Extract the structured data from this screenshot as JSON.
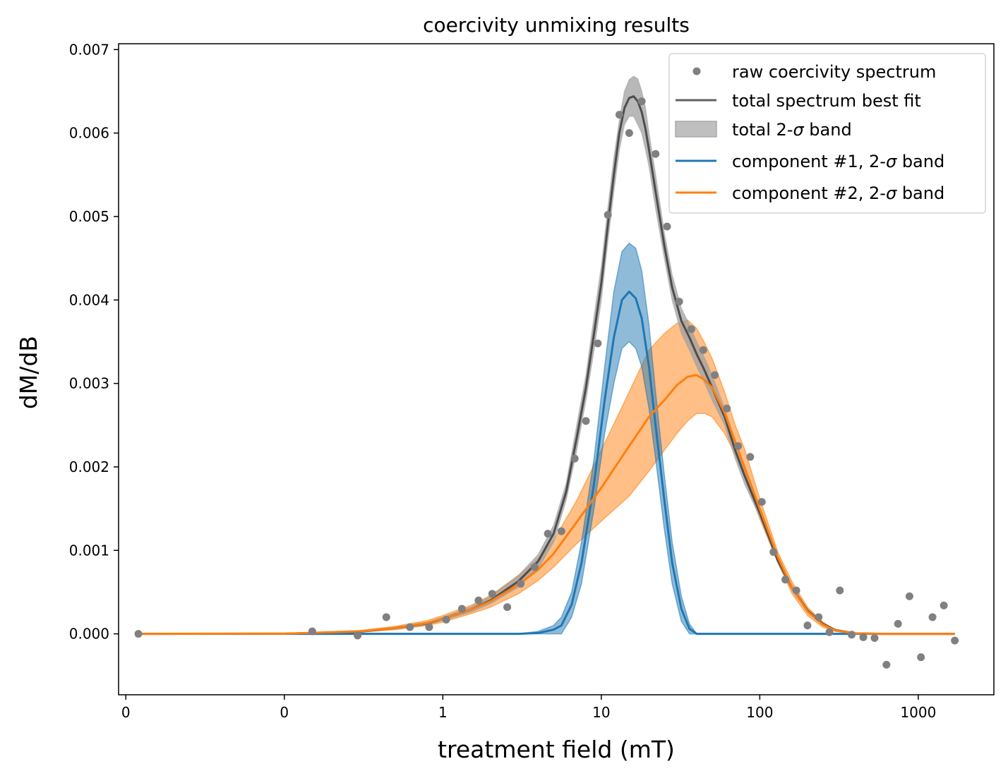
{
  "chart_data": {
    "type": "line",
    "title": "coercivity unmixing results",
    "xlabel": "treatment field (mT)",
    "ylabel": "dM/dB",
    "x_scale": "log",
    "xlim": [
      0.009,
      3000
    ],
    "ylim": [
      -0.00073,
      0.00707
    ],
    "x_ticks": [
      {
        "value": 0.01,
        "label": "0"
      },
      {
        "value": 0.1,
        "label": "0"
      },
      {
        "value": 1,
        "label": "1"
      },
      {
        "value": 10,
        "label": "10"
      },
      {
        "value": 100,
        "label": "100"
      },
      {
        "value": 1000,
        "label": "1000"
      }
    ],
    "y_ticks": [
      {
        "value": 0.0,
        "label": "0.000"
      },
      {
        "value": 0.001,
        "label": "0.001"
      },
      {
        "value": 0.002,
        "label": "0.002"
      },
      {
        "value": 0.003,
        "label": "0.003"
      },
      {
        "value": 0.004,
        "label": "0.004"
      },
      {
        "value": 0.005,
        "label": "0.005"
      },
      {
        "value": 0.006,
        "label": "0.006"
      },
      {
        "value": 0.007,
        "label": "0.007"
      }
    ],
    "grid": false,
    "legend_position": "top-right",
    "legend": [
      {
        "label": "raw coercivity spectrum",
        "kind": "marker",
        "color": "#808080"
      },
      {
        "label": "total spectrum best fit",
        "kind": "line",
        "color": "#606060"
      },
      {
        "label_parts": [
          "total 2-",
          "σ",
          " band"
        ],
        "kind": "patch",
        "color": "#bfbfbf"
      },
      {
        "label_parts": [
          "component #1, 2-",
          "σ",
          " band"
        ],
        "kind": "line",
        "color": "#1f77b4"
      },
      {
        "label_parts": [
          "component #2, 2-",
          "σ",
          " band"
        ],
        "kind": "line",
        "color": "#ff7f0e"
      }
    ],
    "series": [
      {
        "kind": "scatter",
        "color": "#808080",
        "x": [
          0.012,
          0.15,
          0.29,
          0.44,
          0.62,
          0.82,
          1.05,
          1.32,
          1.68,
          2.05,
          2.55,
          3.1,
          3.8,
          4.6,
          5.6,
          6.8,
          8.0,
          9.5,
          11.0,
          13.0,
          15.0,
          18.0,
          22.0,
          26.0,
          31.0,
          37.0,
          44.0,
          52.0,
          62.0,
          73.0,
          87.0,
          103.0,
          122.0,
          145.0,
          170.0,
          200.0,
          235.0,
          275.0,
          320.0,
          380.0,
          450.0,
          530.0,
          630.0,
          745.0,
          880.0,
          1040.0,
          1230.0,
          1450.0,
          1700.0
        ],
        "y": [
          0.0,
          3e-05,
          -2e-05,
          0.0002,
          8e-05,
          8e-05,
          0.00017,
          0.0003,
          0.0004,
          0.00048,
          0.00032,
          0.0006,
          0.0008,
          0.0012,
          0.00123,
          0.0021,
          0.00255,
          0.00348,
          0.00502,
          0.00622,
          0.006,
          0.00638,
          0.00575,
          0.00488,
          0.00398,
          0.00365,
          0.0034,
          0.0031,
          0.0027,
          0.00225,
          0.00212,
          0.00158,
          0.00098,
          0.00065,
          0.00052,
          0.0001,
          0.0002,
          2e-05,
          0.00052,
          -1e-05,
          -4e-05,
          -5e-05,
          -0.00037,
          0.00012,
          0.00045,
          -0.00028,
          0.0002,
          0.00034,
          -8e-05
        ]
      },
      {
        "kind": "band",
        "color": "#ff7f0e",
        "opacity": 0.5,
        "x": [
          0.012,
          0.1,
          0.3,
          0.5,
          0.8,
          1.0,
          1.5,
          2.0,
          3.0,
          4.0,
          5.0,
          7.0,
          10.0,
          15.0,
          20.0,
          25.0,
          30.0,
          35.0,
          40.0,
          45.0,
          50.0,
          60.0,
          70.0,
          80.0,
          100.0,
          130.0,
          160.0,
          200.0,
          250.0,
          300.0,
          400.0,
          600.0,
          1000.0,
          1700.0
        ],
        "upper": [
          0.0,
          5e-06,
          4e-05,
          9e-05,
          0.00016,
          0.00022,
          0.00034,
          0.00046,
          0.0007,
          0.0009,
          0.00112,
          0.0016,
          0.0022,
          0.0029,
          0.0034,
          0.0036,
          0.00372,
          0.00376,
          0.00366,
          0.00348,
          0.0033,
          0.0029,
          0.0025,
          0.00222,
          0.00162,
          0.00098,
          0.00062,
          0.00032,
          0.00014,
          5e-05,
          1e-05,
          0.0,
          0.0,
          0.0
        ],
        "lower": [
          0.0,
          0.0,
          2e-05,
          5e-05,
          0.0001,
          0.00014,
          0.00024,
          0.00032,
          0.00048,
          0.00064,
          0.0008,
          0.00108,
          0.00135,
          0.00165,
          0.00195,
          0.0022,
          0.0024,
          0.00255,
          0.00264,
          0.00264,
          0.0026,
          0.0024,
          0.00215,
          0.00188,
          0.00138,
          0.00085,
          0.00048,
          0.00022,
          8e-05,
          3e-05,
          0.0,
          0.0,
          0.0,
          0.0
        ]
      },
      {
        "kind": "band",
        "color": "#1f77b4",
        "opacity": 0.5,
        "x": [
          0.012,
          3.0,
          4.0,
          5.0,
          5.6,
          6.5,
          7.5,
          9.0,
          10.5,
          12.0,
          13.5,
          15.0,
          16.5,
          18.0,
          20.0,
          22.0,
          25.0,
          28.0,
          32.0,
          36.0,
          40.0,
          60.0,
          100.0,
          1700.0
        ],
        "upper": [
          0.0,
          0.0,
          3e-05,
          0.0001,
          0.0002,
          0.0005,
          0.0011,
          0.0021,
          0.0032,
          0.0041,
          0.00458,
          0.00468,
          0.00462,
          0.00435,
          0.0037,
          0.0029,
          0.0019,
          0.0011,
          0.00045,
          0.00012,
          0.0,
          0.0,
          0.0,
          0.0
        ],
        "lower": [
          0.0,
          0.0,
          0.0,
          0.0,
          0.0,
          0.0002,
          0.0006,
          0.0015,
          0.0024,
          0.003,
          0.00342,
          0.0035,
          0.00342,
          0.0032,
          0.0027,
          0.0021,
          0.00125,
          0.0006,
          0.00015,
          0.0,
          0.0,
          0.0,
          0.0,
          0.0
        ]
      },
      {
        "kind": "band",
        "color": "#a0a0a0",
        "opacity": 0.75,
        "x": [
          0.012,
          0.1,
          0.3,
          0.5,
          0.8,
          1.0,
          1.5,
          2.0,
          3.0,
          4.0,
          5.0,
          6.0,
          7.0,
          8.0,
          9.0,
          10.0,
          11.0,
          12.0,
          13.0,
          14.0,
          15.0,
          16.0,
          17.0,
          18.0,
          19.0,
          20.0,
          22.0,
          25.0,
          28.0,
          32.0,
          36.0,
          40.0,
          45.0,
          50.0,
          60.0,
          70.0,
          80.0,
          100.0,
          130.0,
          160.0,
          200.0,
          250.0,
          300.0,
          400.0,
          600.0,
          1000.0,
          1700.0
        ],
        "upper": [
          0.0,
          4e-06,
          3e-05,
          8e-05,
          0.00014,
          0.0002,
          0.00032,
          0.00045,
          0.0007,
          0.00095,
          0.0013,
          0.0018,
          0.0025,
          0.0031,
          0.0038,
          0.0044,
          0.0051,
          0.0057,
          0.00615,
          0.0065,
          0.00664,
          0.00668,
          0.00665,
          0.0065,
          0.0063,
          0.006,
          0.0055,
          0.0048,
          0.0043,
          0.0039,
          0.0037,
          0.0035,
          0.0033,
          0.0031,
          0.0027,
          0.0023,
          0.002,
          0.0015,
          0.00092,
          0.00058,
          0.0003,
          0.00013,
          5e-05,
          1e-05,
          0.0,
          0.0,
          0.0
        ],
        "lower": [
          0.0,
          0.0,
          2e-05,
          6e-05,
          0.00011,
          0.00016,
          0.00026,
          0.00036,
          0.00056,
          0.00078,
          0.0011,
          0.0016,
          0.0022,
          0.0028,
          0.0034,
          0.004,
          0.0047,
          0.0053,
          0.0058,
          0.0061,
          0.0062,
          0.0062,
          0.0061,
          0.006,
          0.0058,
          0.0056,
          0.0051,
          0.0045,
          0.004,
          0.0036,
          0.0034,
          0.0032,
          0.003,
          0.0028,
          0.0025,
          0.0021,
          0.0018,
          0.0014,
          0.00085,
          0.00052,
          0.00026,
          0.00011,
          4e-05,
          0.0,
          0.0,
          0.0,
          0.0
        ]
      },
      {
        "kind": "line",
        "name": "total spectrum best fit",
        "color": "#4d4d4d",
        "width": 3,
        "x": [
          0.012,
          0.1,
          0.3,
          0.5,
          0.8,
          1.0,
          1.5,
          2.0,
          3.0,
          4.0,
          5.0,
          6.0,
          7.0,
          8.0,
          9.0,
          10.0,
          11.0,
          12.0,
          13.0,
          14.0,
          15.0,
          16.0,
          17.0,
          18.0,
          19.0,
          20.0,
          22.0,
          25.0,
          28.0,
          32.0,
          36.0,
          40.0,
          45.0,
          50.0,
          60.0,
          70.0,
          80.0,
          100.0,
          130.0,
          160.0,
          200.0,
          250.0,
          300.0,
          400.0,
          600.0,
          1000.0,
          1700.0
        ],
        "y": [
          0.0,
          2e-06,
          2.5e-05,
          7e-05,
          0.000125,
          0.00018,
          0.00029,
          0.0004,
          0.00063,
          0.00087,
          0.0012,
          0.0017,
          0.00235,
          0.00295,
          0.0036,
          0.0042,
          0.0049,
          0.0055,
          0.006,
          0.0063,
          0.00642,
          0.00644,
          0.00638,
          0.00625,
          0.00605,
          0.0058,
          0.0053,
          0.00465,
          0.00415,
          0.00375,
          0.00355,
          0.00335,
          0.00315,
          0.00295,
          0.0026,
          0.0022,
          0.0019,
          0.00145,
          0.00088,
          0.00055,
          0.00028,
          0.00012,
          4.5e-05,
          5e-06,
          0.0,
          0.0,
          0.0
        ]
      },
      {
        "kind": "line",
        "name": "component #1, 2-σ band",
        "color": "#1f77b4",
        "width": 3,
        "x": [
          0.012,
          3.0,
          4.0,
          5.0,
          5.6,
          6.5,
          7.5,
          9.0,
          10.5,
          12.0,
          13.5,
          15.0,
          16.5,
          18.0,
          20.0,
          22.0,
          25.0,
          28.0,
          32.0,
          36.0,
          40.0,
          60.0,
          100.0,
          1700.0
        ],
        "y": [
          0.0,
          0.0,
          1e-05,
          5e-05,
          0.0001,
          0.00035,
          0.00085,
          0.0018,
          0.0028,
          0.00355,
          0.004,
          0.0041,
          0.00402,
          0.00378,
          0.0032,
          0.0025,
          0.0016,
          0.00085,
          0.0003,
          6e-05,
          0.0,
          0.0,
          0.0,
          0.0
        ]
      },
      {
        "kind": "line",
        "name": "component #2, 2-σ band",
        "color": "#ff7f0e",
        "width": 3,
        "x": [
          0.012,
          0.1,
          0.3,
          0.5,
          0.8,
          1.0,
          1.5,
          2.0,
          3.0,
          4.0,
          5.0,
          7.0,
          10.0,
          15.0,
          20.0,
          25.0,
          30.0,
          35.0,
          40.0,
          45.0,
          50.0,
          60.0,
          70.0,
          80.0,
          100.0,
          130.0,
          160.0,
          200.0,
          250.0,
          300.0,
          400.0,
          600.0,
          1000.0,
          1700.0
        ],
        "y": [
          0.0,
          2e-06,
          3e-05,
          7e-05,
          0.00013,
          0.00018,
          0.00029,
          0.00039,
          0.00059,
          0.00077,
          0.00096,
          0.00134,
          0.00175,
          0.00225,
          0.0026,
          0.0028,
          0.00298,
          0.00308,
          0.0031,
          0.00304,
          0.00295,
          0.00265,
          0.0023,
          0.002,
          0.0015,
          0.00092,
          0.00055,
          0.00027,
          0.00011,
          4e-05,
          5e-06,
          0.0,
          0.0,
          0.0
        ]
      }
    ]
  }
}
